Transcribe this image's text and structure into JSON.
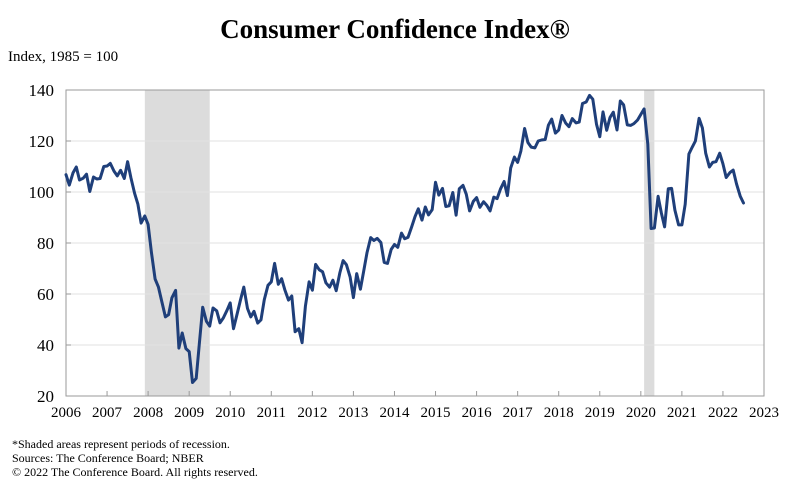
{
  "chart_data": {
    "type": "line",
    "title": "Consumer Confidence Index®",
    "ylabel": "Index, 1985 = 100",
    "xlabel": "",
    "xlim": [
      2006,
      2023
    ],
    "ylim": [
      20,
      140
    ],
    "yticks": [
      20,
      40,
      60,
      80,
      100,
      120,
      140
    ],
    "xticks": [
      2006,
      2007,
      2008,
      2009,
      2010,
      2011,
      2012,
      2013,
      2014,
      2015,
      2016,
      2017,
      2018,
      2019,
      2020,
      2021,
      2022,
      2023
    ],
    "grid": "horizontal",
    "recessions": [
      {
        "start": 2007.92,
        "end": 2009.5
      },
      {
        "start": 2020.08,
        "end": 2020.33
      }
    ],
    "series": [
      {
        "color": "#1f3f7a",
        "points": [
          [
            2006.0,
            106.8
          ],
          [
            2006.08,
            102.7
          ],
          [
            2006.17,
            107.5
          ],
          [
            2006.25,
            109.8
          ],
          [
            2006.33,
            104.7
          ],
          [
            2006.42,
            105.4
          ],
          [
            2006.5,
            107.0
          ],
          [
            2006.58,
            100.2
          ],
          [
            2006.67,
            105.9
          ],
          [
            2006.75,
            105.1
          ],
          [
            2006.83,
            105.3
          ],
          [
            2006.92,
            110.0
          ],
          [
            2007.0,
            110.2
          ],
          [
            2007.08,
            111.2
          ],
          [
            2007.17,
            108.2
          ],
          [
            2007.25,
            106.3
          ],
          [
            2007.33,
            108.5
          ],
          [
            2007.42,
            105.3
          ],
          [
            2007.5,
            111.9
          ],
          [
            2007.58,
            105.6
          ],
          [
            2007.67,
            99.5
          ],
          [
            2007.75,
            95.2
          ],
          [
            2007.83,
            87.8
          ],
          [
            2007.92,
            90.6
          ],
          [
            2008.0,
            87.3
          ],
          [
            2008.08,
            76.4
          ],
          [
            2008.17,
            65.9
          ],
          [
            2008.25,
            62.8
          ],
          [
            2008.33,
            57.2
          ],
          [
            2008.42,
            51.0
          ],
          [
            2008.5,
            51.9
          ],
          [
            2008.58,
            58.5
          ],
          [
            2008.67,
            61.4
          ],
          [
            2008.75,
            38.8
          ],
          [
            2008.83,
            44.7
          ],
          [
            2008.92,
            38.6
          ],
          [
            2009.0,
            37.4
          ],
          [
            2009.08,
            25.3
          ],
          [
            2009.17,
            26.9
          ],
          [
            2009.25,
            40.8
          ],
          [
            2009.33,
            54.8
          ],
          [
            2009.42,
            49.3
          ],
          [
            2009.5,
            47.4
          ],
          [
            2009.58,
            54.5
          ],
          [
            2009.67,
            53.4
          ],
          [
            2009.75,
            48.7
          ],
          [
            2009.83,
            50.6
          ],
          [
            2009.92,
            53.6
          ],
          [
            2010.0,
            56.5
          ],
          [
            2010.08,
            46.4
          ],
          [
            2010.17,
            52.3
          ],
          [
            2010.25,
            57.7
          ],
          [
            2010.33,
            62.7
          ],
          [
            2010.42,
            54.3
          ],
          [
            2010.5,
            51.0
          ],
          [
            2010.58,
            53.2
          ],
          [
            2010.67,
            48.6
          ],
          [
            2010.75,
            49.9
          ],
          [
            2010.83,
            57.8
          ],
          [
            2010.92,
            63.4
          ],
          [
            2011.0,
            64.8
          ],
          [
            2011.08,
            72.0
          ],
          [
            2011.17,
            63.8
          ],
          [
            2011.25,
            66.0
          ],
          [
            2011.33,
            61.7
          ],
          [
            2011.42,
            57.6
          ],
          [
            2011.5,
            59.2
          ],
          [
            2011.58,
            45.2
          ],
          [
            2011.67,
            46.4
          ],
          [
            2011.75,
            40.9
          ],
          [
            2011.83,
            55.2
          ],
          [
            2011.92,
            64.8
          ],
          [
            2012.0,
            61.5
          ],
          [
            2012.08,
            71.6
          ],
          [
            2012.17,
            69.5
          ],
          [
            2012.25,
            68.7
          ],
          [
            2012.33,
            64.4
          ],
          [
            2012.42,
            62.7
          ],
          [
            2012.5,
            65.4
          ],
          [
            2012.58,
            61.3
          ],
          [
            2012.67,
            68.4
          ],
          [
            2012.75,
            73.1
          ],
          [
            2012.83,
            71.5
          ],
          [
            2012.92,
            66.7
          ],
          [
            2013.0,
            58.6
          ],
          [
            2013.08,
            68.0
          ],
          [
            2013.17,
            61.9
          ],
          [
            2013.25,
            69.0
          ],
          [
            2013.33,
            76.2
          ],
          [
            2013.42,
            82.1
          ],
          [
            2013.5,
            81.0
          ],
          [
            2013.58,
            81.8
          ],
          [
            2013.67,
            80.2
          ],
          [
            2013.75,
            72.4
          ],
          [
            2013.83,
            72.0
          ],
          [
            2013.92,
            77.5
          ],
          [
            2014.0,
            79.4
          ],
          [
            2014.08,
            78.3
          ],
          [
            2014.17,
            83.9
          ],
          [
            2014.25,
            81.7
          ],
          [
            2014.33,
            82.2
          ],
          [
            2014.42,
            86.4
          ],
          [
            2014.5,
            90.3
          ],
          [
            2014.58,
            93.4
          ],
          [
            2014.67,
            89.0
          ],
          [
            2014.75,
            94.1
          ],
          [
            2014.83,
            91.0
          ],
          [
            2014.92,
            93.1
          ],
          [
            2015.0,
            103.8
          ],
          [
            2015.08,
            98.8
          ],
          [
            2015.17,
            101.4
          ],
          [
            2015.25,
            94.3
          ],
          [
            2015.33,
            94.6
          ],
          [
            2015.42,
            99.8
          ],
          [
            2015.5,
            90.9
          ],
          [
            2015.58,
            101.3
          ],
          [
            2015.67,
            102.6
          ],
          [
            2015.75,
            99.1
          ],
          [
            2015.83,
            92.6
          ],
          [
            2015.92,
            96.3
          ],
          [
            2016.0,
            97.8
          ],
          [
            2016.08,
            94.0
          ],
          [
            2016.17,
            96.2
          ],
          [
            2016.25,
            94.7
          ],
          [
            2016.33,
            92.6
          ],
          [
            2016.42,
            98.0
          ],
          [
            2016.5,
            97.4
          ],
          [
            2016.58,
            101.1
          ],
          [
            2016.67,
            104.1
          ],
          [
            2016.75,
            98.6
          ],
          [
            2016.83,
            109.4
          ],
          [
            2016.92,
            113.7
          ],
          [
            2017.0,
            111.6
          ],
          [
            2017.08,
            116.1
          ],
          [
            2017.17,
            124.9
          ],
          [
            2017.25,
            119.4
          ],
          [
            2017.33,
            117.6
          ],
          [
            2017.42,
            117.3
          ],
          [
            2017.5,
            120.0
          ],
          [
            2017.58,
            120.4
          ],
          [
            2017.67,
            120.6
          ],
          [
            2017.75,
            126.2
          ],
          [
            2017.83,
            128.6
          ],
          [
            2017.92,
            123.1
          ],
          [
            2018.0,
            124.3
          ],
          [
            2018.08,
            130.0
          ],
          [
            2018.17,
            127.0
          ],
          [
            2018.25,
            125.6
          ],
          [
            2018.33,
            128.8
          ],
          [
            2018.42,
            127.1
          ],
          [
            2018.5,
            127.4
          ],
          [
            2018.58,
            134.7
          ],
          [
            2018.67,
            135.3
          ],
          [
            2018.75,
            137.9
          ],
          [
            2018.83,
            136.4
          ],
          [
            2018.92,
            126.6
          ],
          [
            2019.0,
            121.7
          ],
          [
            2019.08,
            131.4
          ],
          [
            2019.17,
            124.2
          ],
          [
            2019.25,
            129.2
          ],
          [
            2019.33,
            131.3
          ],
          [
            2019.42,
            124.3
          ],
          [
            2019.5,
            135.7
          ],
          [
            2019.58,
            134.2
          ],
          [
            2019.67,
            126.3
          ],
          [
            2019.75,
            126.1
          ],
          [
            2019.83,
            126.8
          ],
          [
            2019.92,
            128.2
          ],
          [
            2020.0,
            130.4
          ],
          [
            2020.08,
            132.6
          ],
          [
            2020.17,
            118.8
          ],
          [
            2020.25,
            85.7
          ],
          [
            2020.33,
            85.9
          ],
          [
            2020.42,
            98.3
          ],
          [
            2020.5,
            91.7
          ],
          [
            2020.58,
            86.3
          ],
          [
            2020.67,
            101.3
          ],
          [
            2020.75,
            101.4
          ],
          [
            2020.83,
            92.9
          ],
          [
            2020.92,
            87.1
          ],
          [
            2021.0,
            87.1
          ],
          [
            2021.08,
            95.2
          ],
          [
            2021.17,
            114.9
          ],
          [
            2021.25,
            117.5
          ],
          [
            2021.33,
            120.0
          ],
          [
            2021.42,
            128.9
          ],
          [
            2021.5,
            125.1
          ],
          [
            2021.58,
            115.2
          ],
          [
            2021.67,
            109.8
          ],
          [
            2021.75,
            111.6
          ],
          [
            2021.83,
            111.9
          ],
          [
            2021.92,
            115.2
          ],
          [
            2022.0,
            111.1
          ],
          [
            2022.08,
            105.7
          ],
          [
            2022.17,
            107.6
          ],
          [
            2022.25,
            108.6
          ],
          [
            2022.33,
            103.2
          ],
          [
            2022.42,
            98.4
          ],
          [
            2022.5,
            95.7
          ]
        ]
      }
    ]
  },
  "notes": {
    "shading": "*Shaded areas represent periods of recession.",
    "sources": "Sources: The Conference Board; NBER",
    "copyright": "© 2022 The Conference Board. All rights reserved."
  }
}
